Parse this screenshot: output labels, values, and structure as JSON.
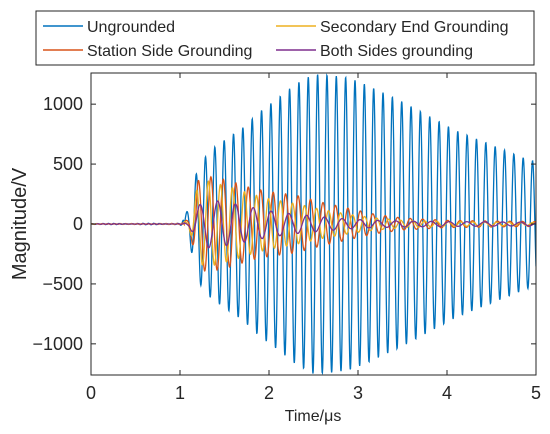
{
  "chart_data": {
    "type": "line",
    "title": "",
    "xlabel": "Time/μs",
    "ylabel": "Magnitude/V",
    "xlim": [
      0,
      5
    ],
    "ylim": [
      -1260,
      1260
    ],
    "x_ticks": [
      0,
      1,
      2,
      3,
      4,
      5
    ],
    "y_ticks": [
      -1000,
      -500,
      0,
      500,
      1000
    ],
    "x_tick_labels": [
      "0",
      "1",
      "2",
      "3",
      "4",
      "5"
    ],
    "y_tick_labels": [
      "−1000",
      "−500",
      "0",
      "500",
      "1000"
    ],
    "grid": false,
    "legend_position": "top",
    "legend": [
      "Ungrounded",
      "Station Side Grounding",
      "Secondary End Grounding",
      "Both Sides grounding"
    ],
    "series": [
      {
        "name": "Ungrounded",
        "color": "#0072BD",
        "x": [
          0,
          0.5,
          1.0,
          1.1,
          1.2,
          1.35,
          1.5,
          1.7,
          1.9,
          2.1,
          2.3,
          2.5,
          2.7,
          2.9,
          3.1,
          3.3,
          3.5,
          3.7,
          3.9,
          4.1,
          4.3,
          4.5,
          4.7,
          4.9,
          5.0
        ],
        "amplitude": [
          8,
          10,
          12,
          130,
          480,
          620,
          700,
          800,
          940,
          1050,
          1170,
          1250,
          1240,
          1220,
          1160,
          1090,
          1020,
          940,
          860,
          780,
          720,
          660,
          600,
          540,
          520
        ]
      },
      {
        "name": "Station Side Grounding",
        "color": "#D95319",
        "x": [
          0,
          1.0,
          1.1,
          1.2,
          1.3,
          1.45,
          1.6,
          1.8,
          2.0,
          2.3,
          2.6,
          2.9,
          3.2,
          3.5,
          4.0,
          4.5,
          5.0
        ],
        "amplitude": [
          6,
          8,
          40,
          360,
          400,
          380,
          350,
          300,
          270,
          240,
          180,
          130,
          80,
          50,
          30,
          25,
          20
        ]
      },
      {
        "name": "Secondary End Grounding",
        "color": "#EDB120",
        "x": [
          0,
          1.0,
          1.1,
          1.2,
          1.3,
          1.45,
          1.6,
          1.8,
          2.0,
          2.3,
          2.6,
          2.9,
          3.2,
          3.5,
          4.0,
          4.5,
          5.0
        ],
        "amplitude": [
          6,
          8,
          30,
          320,
          360,
          330,
          300,
          250,
          210,
          170,
          120,
          80,
          50,
          30,
          20,
          15,
          12
        ]
      },
      {
        "name": "Both Sides grounding",
        "color": "#7E2F8E",
        "x": [
          0,
          1.0,
          1.1,
          1.2,
          1.3,
          1.45,
          1.6,
          1.8,
          2.0,
          2.3,
          2.6,
          2.9,
          3.2,
          3.5,
          4.0,
          4.5,
          5.0
        ],
        "amplitude": [
          5,
          6,
          20,
          150,
          200,
          190,
          170,
          140,
          110,
          80,
          60,
          40,
          30,
          25,
          20,
          18,
          15
        ]
      }
    ]
  }
}
